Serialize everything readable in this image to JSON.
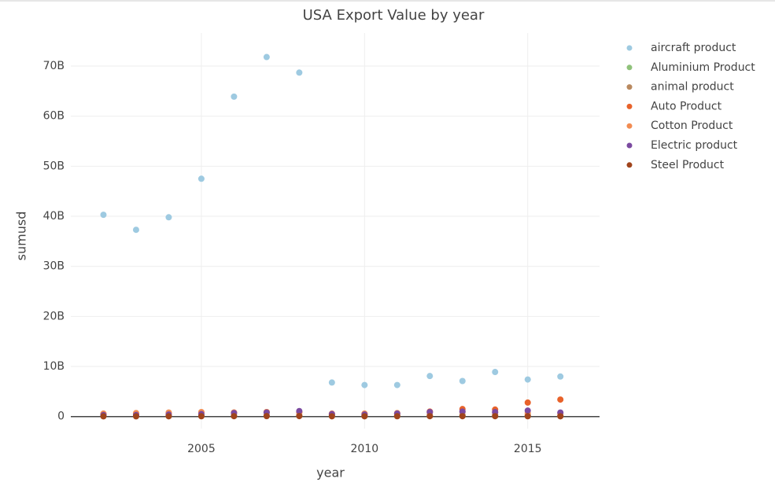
{
  "chart_data": {
    "type": "scatter",
    "title": "USA Export Value by year",
    "x_label": "year",
    "y_label": "sumusd",
    "x": [
      2002,
      2003,
      2004,
      2005,
      2006,
      2007,
      2008,
      2009,
      2010,
      2011,
      2012,
      2013,
      2014,
      2015,
      2016
    ],
    "series": [
      {
        "name": "aircraft product",
        "color": "#9ecae1",
        "values": [
          40300000000.0,
          37300000000.0,
          39800000000.0,
          47500000000.0,
          63900000000.0,
          71800000000.0,
          68700000000.0,
          6800000000.0,
          6300000000.0,
          6300000000.0,
          8100000000.0,
          7100000000.0,
          8900000000.0,
          7400000000.0,
          8000000000.0
        ]
      },
      {
        "name": "Aluminium Product",
        "color": "#8fc27a",
        "values": [
          100000000.0,
          100000000.0,
          100000000.0,
          120000000.0,
          130000000.0,
          140000000.0,
          140000000.0,
          100000000.0,
          100000000.0,
          110000000.0,
          120000000.0,
          120000000.0,
          120000000.0,
          110000000.0,
          100000000.0
        ]
      },
      {
        "name": "animal product",
        "color": "#b9895f",
        "values": [
          200000000.0,
          200000000.0,
          200000000.0,
          220000000.0,
          230000000.0,
          250000000.0,
          260000000.0,
          220000000.0,
          230000000.0,
          250000000.0,
          270000000.0,
          280000000.0,
          290000000.0,
          270000000.0,
          260000000.0
        ]
      },
      {
        "name": "Auto Product",
        "color": "#e8622a",
        "values": [
          500000000.0,
          600000000.0,
          700000000.0,
          800000000.0,
          800000000.0,
          900000000.0,
          900000000.0,
          500000000.0,
          500000000.0,
          600000000.0,
          1000000000.0,
          1500000000.0,
          1400000000.0,
          2800000000.0,
          3400000000.0
        ]
      },
      {
        "name": "Cotton Product",
        "color": "#f28c52",
        "values": [
          600000000.0,
          700000000.0,
          800000000.0,
          900000000.0,
          800000000.0,
          900000000.0,
          800000000.0,
          600000000.0,
          600000000.0,
          700000000.0,
          800000000.0,
          900000000.0,
          800000000.0,
          700000000.0,
          600000000.0
        ]
      },
      {
        "name": "Electric product",
        "color": "#7b4aa0",
        "values": [
          300000000.0,
          300000000.0,
          400000000.0,
          500000000.0,
          700000000.0,
          800000000.0,
          1100000000.0,
          500000000.0,
          400000000.0,
          600000000.0,
          900000000.0,
          1000000000.0,
          900000000.0,
          1200000000.0,
          800000000.0
        ]
      },
      {
        "name": "Steel Product",
        "color": "#a0441c",
        "values": [
          50000000.0,
          50000000.0,
          60000000.0,
          70000000.0,
          80000000.0,
          90000000.0,
          100000000.0,
          60000000.0,
          60000000.0,
          70000000.0,
          80000000.0,
          80000000.0,
          80000000.0,
          70000000.0,
          60000000.0
        ]
      }
    ],
    "xlim": [
      2001,
      2017.2
    ],
    "ylim": [
      -2400000000.0,
      76600000000.0
    ],
    "xticks": [
      2005,
      2010,
      2015
    ],
    "yticks": [
      0,
      {
        "value": 10000000000.0,
        "label": "10B"
      },
      {
        "value": 20000000000.0,
        "label": "20B"
      },
      {
        "value": 30000000000.0,
        "label": "30B"
      },
      {
        "value": 40000000000.0,
        "label": "40B"
      },
      {
        "value": 50000000000.0,
        "label": "50B"
      },
      {
        "value": 60000000000.0,
        "label": "60B"
      },
      {
        "value": 70000000000.0,
        "label": "70B"
      }
    ],
    "grid": true,
    "legend": "right"
  }
}
